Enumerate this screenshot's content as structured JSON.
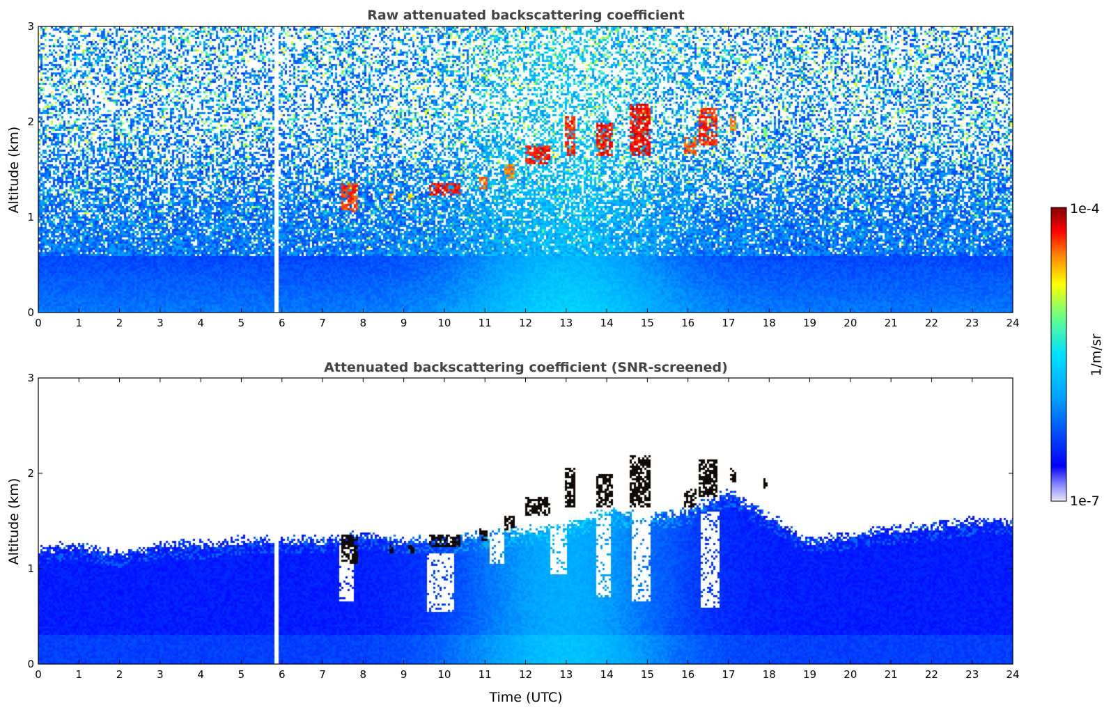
{
  "chart_data": [
    {
      "type": "heatmap",
      "title": "Raw attenuated backscattering coefficient",
      "ylabel": "Altitude (km)",
      "xlabel": "",
      "xlim": [
        0,
        24
      ],
      "ylim": [
        0,
        3
      ],
      "xticks": [
        "0",
        "1",
        "2",
        "3",
        "4",
        "5",
        "6",
        "7",
        "8",
        "9",
        "10",
        "11",
        "12",
        "13",
        "14",
        "15",
        "16",
        "17",
        "18",
        "19",
        "20",
        "21",
        "22",
        "23",
        "24"
      ],
      "yticks": [
        "0",
        "1",
        "2",
        "3"
      ],
      "data_gap_utc": [
        5.82,
        5.94
      ],
      "cloud_layers": [
        {
          "t": [
            7.45,
            7.85
          ],
          "alt_km": [
            1.05,
            1.35
          ],
          "level": 0.92
        },
        {
          "t": [
            8.65,
            8.75
          ],
          "alt_km": [
            1.15,
            1.25
          ],
          "level": 0.85
        },
        {
          "t": [
            9.1,
            9.25
          ],
          "alt_km": [
            1.15,
            1.25
          ],
          "level": 0.8
        },
        {
          "t": [
            9.6,
            10.4
          ],
          "alt_km": [
            1.22,
            1.35
          ],
          "level": 0.95
        },
        {
          "t": [
            10.85,
            11.05
          ],
          "alt_km": [
            1.3,
            1.42
          ],
          "level": 0.9
        },
        {
          "t": [
            11.5,
            11.75
          ],
          "alt_km": [
            1.4,
            1.55
          ],
          "level": 0.88
        },
        {
          "t": [
            12.0,
            12.6
          ],
          "alt_km": [
            1.55,
            1.75
          ],
          "level": 0.95
        },
        {
          "t": [
            12.95,
            13.25
          ],
          "alt_km": [
            1.65,
            2.05
          ],
          "level": 0.93
        },
        {
          "t": [
            13.75,
            14.15
          ],
          "alt_km": [
            1.65,
            2.0
          ],
          "level": 0.95
        },
        {
          "t": [
            14.55,
            15.1
          ],
          "alt_km": [
            1.65,
            2.2
          ],
          "level": 0.96
        },
        {
          "t": [
            15.9,
            16.2
          ],
          "alt_km": [
            1.65,
            1.85
          ],
          "level": 0.9
        },
        {
          "t": [
            16.25,
            16.75
          ],
          "alt_km": [
            1.75,
            2.15
          ],
          "level": 0.93
        },
        {
          "t": [
            17.05,
            17.2
          ],
          "alt_km": [
            1.9,
            2.05
          ],
          "level": 0.88
        },
        {
          "t": [
            17.85,
            17.95
          ],
          "alt_km": [
            1.85,
            1.95
          ],
          "level": 0.7
        }
      ]
    },
    {
      "type": "heatmap",
      "title": "Attenuated backscattering coefficient (SNR-screened)",
      "ylabel": "Altitude (km)",
      "xlabel": "Time (UTC)",
      "xlim": [
        0,
        24
      ],
      "ylim": [
        0,
        3
      ],
      "xticks": [
        "0",
        "1",
        "2",
        "3",
        "4",
        "5",
        "6",
        "7",
        "8",
        "9",
        "10",
        "11",
        "12",
        "13",
        "14",
        "15",
        "16",
        "17",
        "18",
        "19",
        "20",
        "21",
        "22",
        "23",
        "24"
      ],
      "yticks": [
        "0",
        "1",
        "2",
        "3"
      ],
      "data_gap_utc": [
        5.82,
        5.94
      ],
      "screened_top_km": [
        [
          0,
          1.2
        ],
        [
          1,
          1.25
        ],
        [
          2,
          1.15
        ],
        [
          3,
          1.25
        ],
        [
          4,
          1.25
        ],
        [
          5,
          1.3
        ],
        [
          6,
          1.3
        ],
        [
          7,
          1.3
        ],
        [
          8,
          1.35
        ],
        [
          9,
          1.3
        ],
        [
          10,
          1.3
        ],
        [
          11,
          1.35
        ],
        [
          12,
          1.4
        ],
        [
          13,
          1.45
        ],
        [
          14,
          1.6
        ],
        [
          15,
          1.55
        ],
        [
          16,
          1.6
        ],
        [
          17,
          1.8
        ],
        [
          18,
          1.55
        ],
        [
          19,
          1.3
        ],
        [
          20,
          1.35
        ],
        [
          21,
          1.4
        ],
        [
          22,
          1.45
        ],
        [
          23,
          1.5
        ],
        [
          24,
          1.5
        ]
      ],
      "clear_gaps": [
        {
          "t": [
            7.4,
            7.75
          ],
          "alt_km": [
            0.65,
            1.25
          ]
        },
        {
          "t": [
            9.55,
            10.25
          ],
          "alt_km": [
            0.55,
            1.15
          ]
        },
        {
          "t": [
            11.1,
            11.5
          ],
          "alt_km": [
            1.05,
            1.35
          ]
        },
        {
          "t": [
            12.6,
            13.0
          ],
          "alt_km": [
            0.95,
            1.5
          ]
        },
        {
          "t": [
            13.75,
            14.1
          ],
          "alt_km": [
            0.7,
            1.55
          ]
        },
        {
          "t": [
            14.6,
            15.1
          ],
          "alt_km": [
            0.65,
            1.6
          ]
        },
        {
          "t": [
            16.3,
            16.8
          ],
          "alt_km": [
            0.6,
            1.6
          ]
        }
      ]
    }
  ],
  "colorbar": {
    "label": "1/m/sr",
    "max_label": "1e-4",
    "min_label": "1e-7",
    "colormap": [
      "#e8e8f8",
      "#0000ff",
      "#00a0ff",
      "#00e0ff",
      "#60ff90",
      "#ffff00",
      "#ff8000",
      "#ff0000",
      "#800000"
    ]
  }
}
